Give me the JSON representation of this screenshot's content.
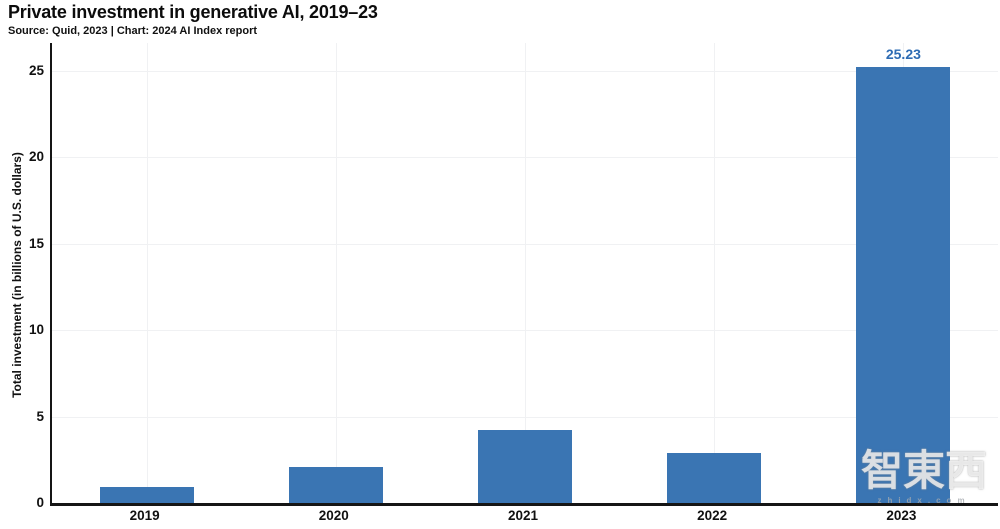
{
  "header": {
    "title": "Private investment in generative AI, 2019–23",
    "source_line": "Source: Quid, 2023 | Chart: 2024 AI Index report"
  },
  "colors": {
    "bar": "#3a75b3",
    "bar_label": "#2e6cb4",
    "axis": "#151515",
    "grid": "#f0f1f3",
    "text": "#111111"
  },
  "chart_data": {
    "type": "bar",
    "title": "Private investment in generative AI, 2019–23",
    "subtitle": "Source: Quid, 2023 | Chart: 2024 AI Index report",
    "categories": [
      "2019",
      "2020",
      "2021",
      "2022",
      "2023"
    ],
    "values": [
      0.9,
      2.1,
      4.2,
      2.9,
      25.23
    ],
    "bar_labels": [
      "",
      "",
      "",
      "",
      "25.23"
    ],
    "xlabel": "",
    "ylabel": "Total investment (in billions of U.S. dollars)",
    "yticks": [
      0,
      5,
      10,
      15,
      20,
      25
    ],
    "ylim": [
      0,
      26.6
    ],
    "grid": true,
    "legend_position": "none"
  },
  "watermark": {
    "text": "智東西",
    "subtext": "zhidx.com"
  }
}
